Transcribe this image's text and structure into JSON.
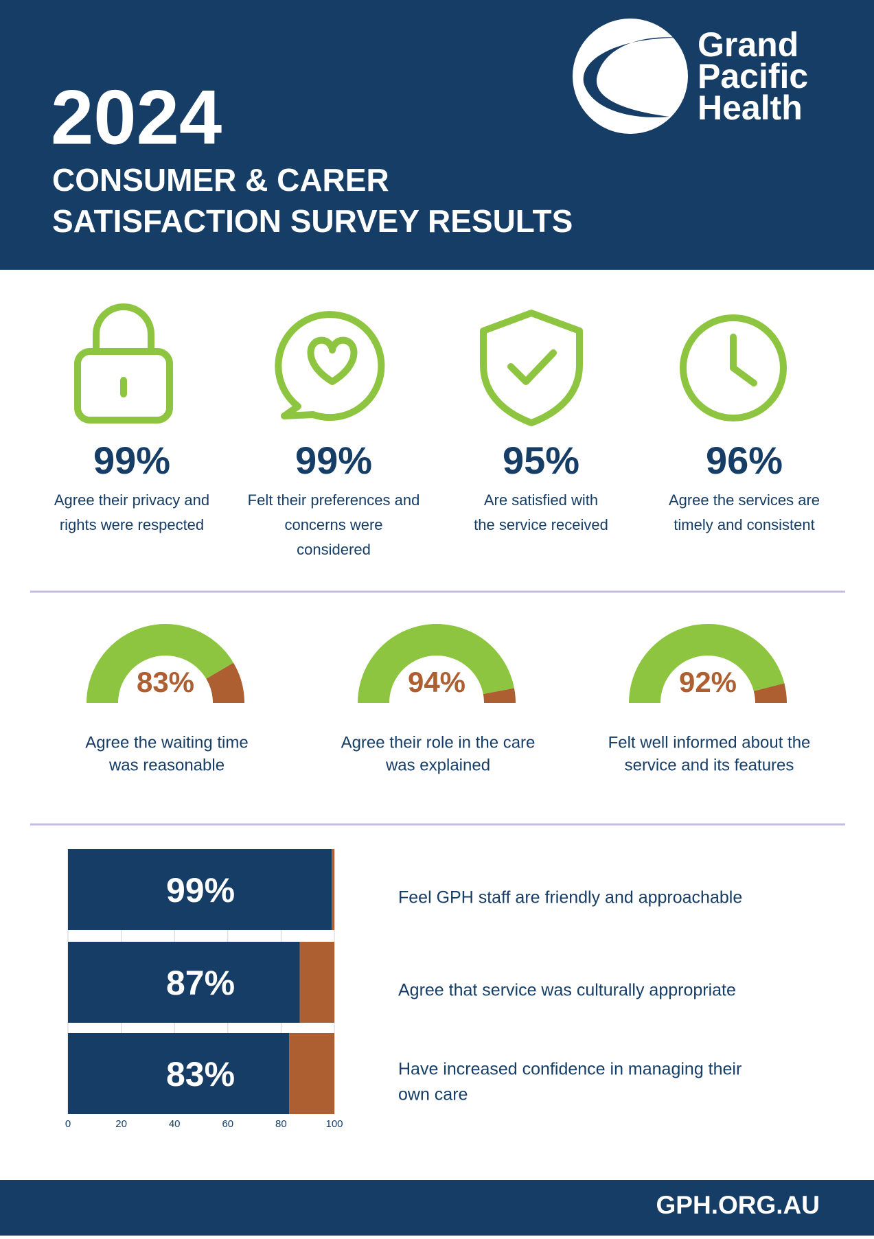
{
  "header": {
    "year": "2024",
    "title_lines": [
      "CONSUMER & CARER",
      "SATISFACTION SURVEY RESULTS"
    ],
    "logo_lines": [
      "Grand",
      "Pacific",
      "Health"
    ]
  },
  "stats": [
    {
      "percent": "99%",
      "lines": [
        "Agree their privacy and",
        "rights were respected"
      ]
    },
    {
      "percent": "99%",
      "lines": [
        "Felt their preferences and",
        "concerns were",
        "considered"
      ]
    },
    {
      "percent": "95%",
      "lines": [
        "Are satisfied with",
        "the service received"
      ]
    },
    {
      "percent": "96%",
      "lines": [
        "Agree the services are",
        "timely and consistent"
      ]
    }
  ],
  "gauges": {
    "values": [
      83,
      94,
      92
    ],
    "value_labels": [
      "83%",
      "94%",
      "92%"
    ],
    "color": "#8dc540",
    "rest_color": "#ad5f31",
    "labels": [
      [
        "Agree the waiting time",
        "was reasonable"
      ],
      [
        "Agree their role in the care",
        "was explained"
      ],
      [
        "Felt well informed about the",
        "service and its features"
      ]
    ]
  },
  "chart_data": {
    "type": "bar",
    "values": [
      99,
      87,
      83
    ],
    "value_labels": [
      "99%",
      "87%",
      "83%"
    ],
    "color": "#163d66",
    "rest_color": "#ad5f31",
    "xlim": [
      0,
      100
    ],
    "xticks": [
      0,
      20,
      40,
      60,
      80,
      100
    ],
    "categories": [
      [
        "Feel GPH staff are friendly and approachable"
      ],
      [
        "Agree that service was culturally appropriate"
      ],
      [
        "Have increased confidence in managing their",
        "own care"
      ]
    ]
  },
  "footer": {
    "url": "GPH.ORG.AU"
  }
}
